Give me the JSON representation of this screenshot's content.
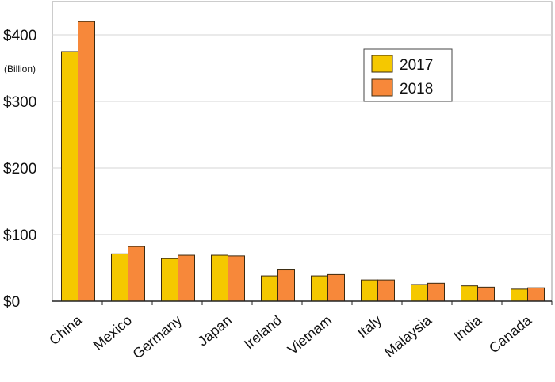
{
  "chart_data": {
    "type": "bar",
    "unit_label": "(Billion)",
    "categories": [
      "China",
      "Mexico",
      "Germany",
      "Japan",
      "Ireland",
      "Vietnam",
      "Italy",
      "Malaysia",
      "India",
      "Canada"
    ],
    "series": [
      {
        "name": "2017",
        "color": "#f5c800",
        "values": [
          375,
          71,
          64,
          69,
          38,
          38,
          32,
          25,
          23,
          18
        ]
      },
      {
        "name": "2018",
        "color": "#f7883a",
        "values": [
          420,
          82,
          69,
          68,
          47,
          40,
          32,
          27,
          21,
          20
        ]
      }
    ],
    "ylim": [
      0,
      400
    ],
    "yticks": [
      {
        "value": 0,
        "label": "$0"
      },
      {
        "value": 100,
        "label": "$100"
      },
      {
        "value": 200,
        "label": "$200"
      },
      {
        "value": 300,
        "label": "$300"
      },
      {
        "value": 400,
        "label": "$400"
      }
    ],
    "grid": true,
    "legend_position": "top-right"
  }
}
